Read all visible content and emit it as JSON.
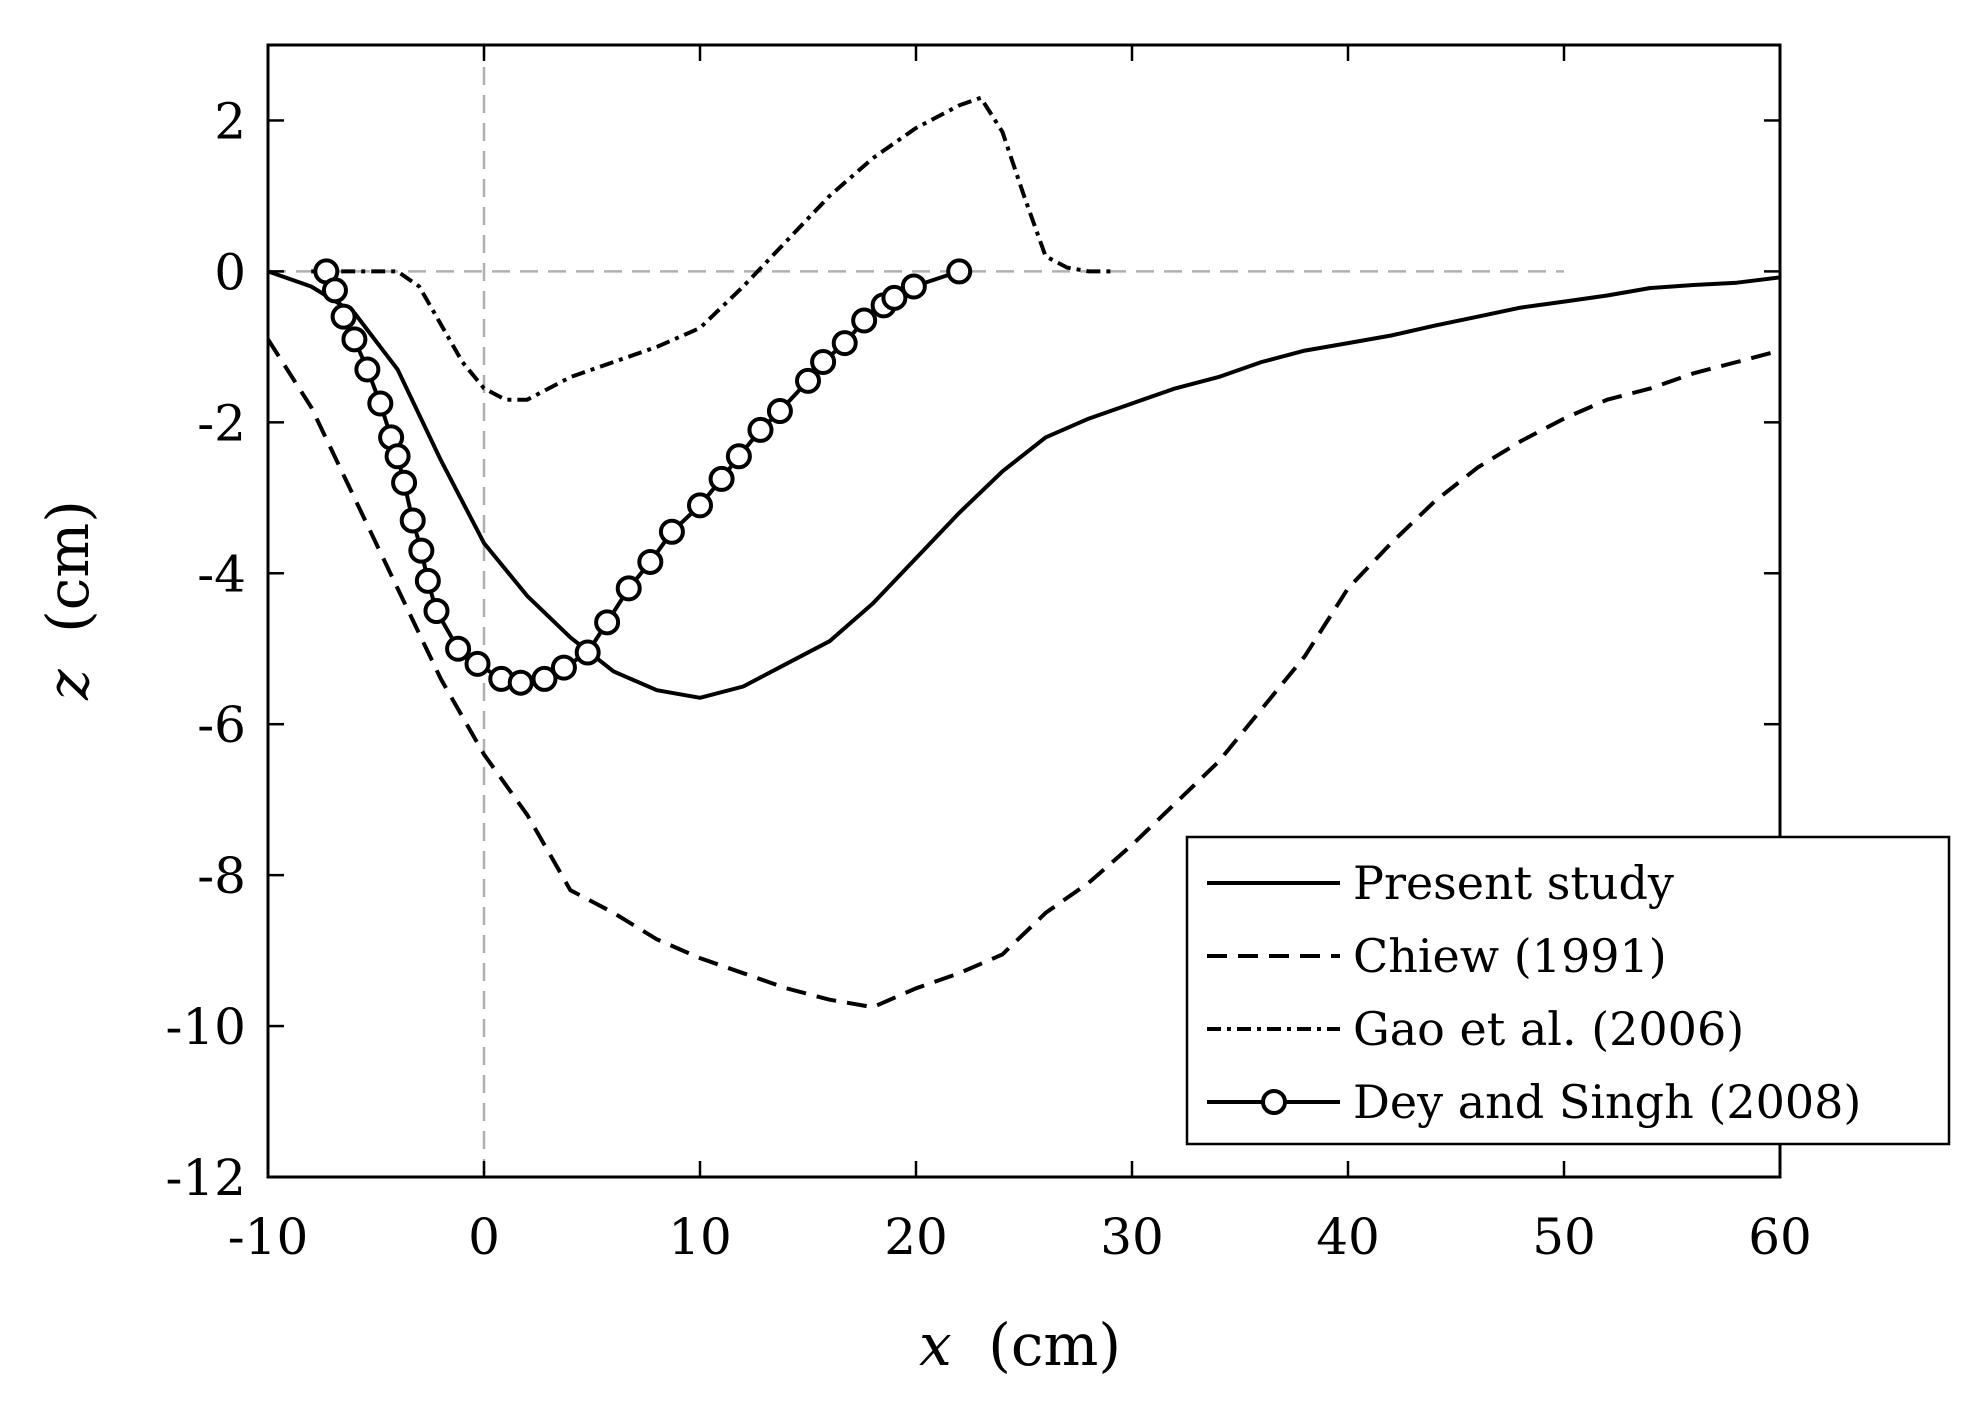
{
  "chart_data": {
    "type": "line",
    "title": "",
    "xlabel_var": "x",
    "xlabel_unit": "(cm)",
    "ylabel_var": "z",
    "ylabel_unit": "(cm)",
    "xlim": [
      -10,
      60
    ],
    "ylim": [
      -12,
      3
    ],
    "xticks": [
      -10,
      0,
      10,
      20,
      30,
      40,
      50,
      60
    ],
    "yticks": [
      -12,
      -10,
      -8,
      -6,
      -4,
      -2,
      0,
      2
    ],
    "xtick_labels": [
      "-10",
      "0",
      "10",
      "20",
      "30",
      "40",
      "50",
      "60"
    ],
    "ytick_labels": [
      "-12",
      "-10",
      "-8",
      "-6",
      "-4",
      "-2",
      "0",
      "2"
    ],
    "grid": false,
    "reference_lines": [
      {
        "orientation": "horizontal",
        "value": 0,
        "from": -10,
        "to": 50,
        "style": "dashed",
        "color": "#b0b0b0"
      },
      {
        "orientation": "vertical",
        "value": 0,
        "from": -12,
        "to": 3,
        "style": "dashed",
        "color": "#b0b0b0"
      }
    ],
    "legend_position": "bottom-right",
    "series": [
      {
        "name": "Present study",
        "style": "solid",
        "marker": "none",
        "x": [
          -10,
          -8,
          -6,
          -4,
          -2,
          0,
          2,
          4,
          6,
          8,
          10,
          12,
          14,
          16,
          18,
          20,
          22,
          24,
          26,
          28,
          30,
          32,
          34,
          36,
          38,
          40,
          42,
          44,
          46,
          48,
          50,
          52,
          54,
          56,
          58,
          60
        ],
        "y": [
          0,
          -0.2,
          -0.55,
          -1.3,
          -2.5,
          -3.6,
          -4.3,
          -4.85,
          -5.3,
          -5.55,
          -5.65,
          -5.5,
          -5.2,
          -4.9,
          -4.4,
          -3.8,
          -3.2,
          -2.65,
          -2.2,
          -1.95,
          -1.75,
          -1.55,
          -1.4,
          -1.2,
          -1.05,
          -0.95,
          -0.85,
          -0.72,
          -0.6,
          -0.48,
          -0.4,
          -0.32,
          -0.22,
          -0.18,
          -0.15,
          -0.08
        ]
      },
      {
        "name": "Chiew (1991)",
        "style": "dashed",
        "marker": "none",
        "x": [
          -10,
          -8,
          -6,
          -4,
          -2,
          0,
          2,
          4,
          6,
          8,
          10,
          12,
          14,
          16,
          18,
          20,
          22,
          24,
          26,
          28,
          30,
          32,
          34,
          36,
          38,
          40,
          42,
          44,
          46,
          48,
          50,
          52,
          54,
          56,
          58,
          60
        ],
        "y": [
          -0.9,
          -1.8,
          -3.0,
          -4.2,
          -5.4,
          -6.4,
          -7.2,
          -8.2,
          -8.5,
          -8.85,
          -9.1,
          -9.3,
          -9.5,
          -9.65,
          -9.75,
          -9.5,
          -9.3,
          -9.05,
          -8.5,
          -8.1,
          -7.6,
          -7.05,
          -6.5,
          -5.8,
          -5.1,
          -4.2,
          -3.6,
          -3.05,
          -2.6,
          -2.25,
          -1.95,
          -1.7,
          -1.55,
          -1.35,
          -1.2,
          -1.05
        ]
      },
      {
        "name": "Gao et al. (2006)",
        "style": "dashdot",
        "marker": "none",
        "x": [
          -8,
          -6,
          -4,
          -3,
          -2,
          -1,
          0,
          1,
          2,
          4,
          6,
          8,
          10,
          12,
          14,
          16,
          18,
          20,
          22,
          23,
          24,
          25,
          26,
          27,
          28,
          29
        ],
        "y": [
          0,
          0,
          0,
          -0.2,
          -0.7,
          -1.2,
          -1.55,
          -1.7,
          -1.7,
          -1.4,
          -1.2,
          -1.0,
          -0.75,
          -0.2,
          0.4,
          1.0,
          1.5,
          1.9,
          2.2,
          2.3,
          1.85,
          1.0,
          0.2,
          0.05,
          0,
          0
        ]
      },
      {
        "name": "Dey and Singh (2008)",
        "style": "solid",
        "marker": "circle",
        "x": [
          -7.3,
          -6.9,
          -6.5,
          -6.0,
          -5.4,
          -4.8,
          -4.3,
          -4.0,
          -3.7,
          -3.3,
          -2.9,
          -2.6,
          -2.2,
          -1.2,
          -0.3,
          0.8,
          1.7,
          2.8,
          3.7,
          4.8,
          5.7,
          6.7,
          7.7,
          8.7,
          10.0,
          11.0,
          11.8,
          12.8,
          13.7,
          15.0,
          15.7,
          16.7,
          17.6,
          18.5,
          19.0,
          19.9,
          22.0
        ],
        "y": [
          0,
          -0.25,
          -0.6,
          -0.9,
          -1.3,
          -1.75,
          -2.2,
          -2.45,
          -2.8,
          -3.3,
          -3.7,
          -4.1,
          -4.5,
          -5.0,
          -5.2,
          -5.4,
          -5.45,
          -5.4,
          -5.25,
          -5.05,
          -4.65,
          -4.2,
          -3.85,
          -3.45,
          -3.1,
          -2.75,
          -2.45,
          -2.1,
          -1.85,
          -1.45,
          -1.2,
          -0.95,
          -0.65,
          -0.45,
          -0.35,
          -0.2,
          0
        ]
      }
    ]
  }
}
